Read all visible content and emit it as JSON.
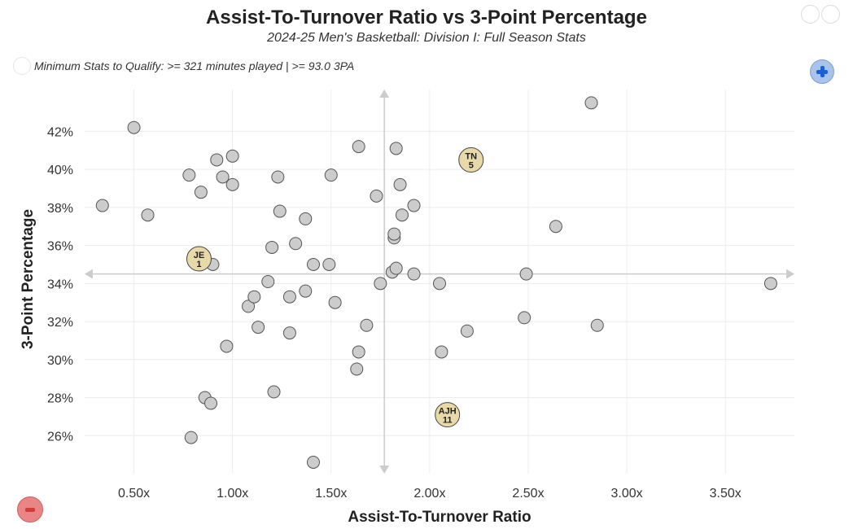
{
  "chart_data": {
    "type": "scatter",
    "title": "Assist-To-Turnover Ratio vs 3-Point Percentage",
    "subtitle": "2024-25 Men's Basketball: Division I: Full Season Stats",
    "note": "Minimum Stats to Qualify: >= 321 minutes played | >= 93.0 3PA",
    "xlabel": "Assist-To-Turnover Ratio",
    "ylabel": "3-Point Percentage",
    "xlim": [
      0.25,
      3.85
    ],
    "ylim": [
      24.0,
      44.2
    ],
    "x_ticks": [
      0.5,
      1.0,
      1.5,
      2.0,
      2.5,
      3.0,
      3.5
    ],
    "x_tick_labels": [
      "0.50x",
      "1.00x",
      "1.50x",
      "2.00x",
      "2.50x",
      "3.00x",
      "3.50x"
    ],
    "y_ticks": [
      26,
      28,
      30,
      32,
      34,
      36,
      38,
      40,
      42
    ],
    "y_tick_labels": [
      "26%",
      "28%",
      "30%",
      "32%",
      "34%",
      "36%",
      "38%",
      "40%",
      "42%"
    ],
    "grid": true,
    "avg_x": 1.77,
    "avg_y": 34.5,
    "colors": {
      "point": "#cccccc",
      "point_stroke": "#555555",
      "highlight": "#e8d9a8",
      "grid": "#ececec",
      "avg_line": "#cccccc"
    },
    "points": [
      {
        "x": 0.34,
        "y": 38.1
      },
      {
        "x": 0.5,
        "y": 42.2
      },
      {
        "x": 0.57,
        "y": 37.6
      },
      {
        "x": 0.78,
        "y": 39.7
      },
      {
        "x": 0.79,
        "y": 25.9
      },
      {
        "x": 0.84,
        "y": 38.8
      },
      {
        "x": 0.86,
        "y": 28.0
      },
      {
        "x": 0.89,
        "y": 27.7
      },
      {
        "x": 0.9,
        "y": 35.0
      },
      {
        "x": 0.92,
        "y": 40.5
      },
      {
        "x": 0.95,
        "y": 39.6
      },
      {
        "x": 0.97,
        "y": 30.7
      },
      {
        "x": 1.0,
        "y": 40.7
      },
      {
        "x": 1.0,
        "y": 39.2
      },
      {
        "x": 1.08,
        "y": 32.8
      },
      {
        "x": 1.11,
        "y": 33.3
      },
      {
        "x": 1.13,
        "y": 31.7
      },
      {
        "x": 1.18,
        "y": 34.1
      },
      {
        "x": 1.2,
        "y": 35.9
      },
      {
        "x": 1.21,
        "y": 28.3
      },
      {
        "x": 1.23,
        "y": 39.6
      },
      {
        "x": 1.24,
        "y": 37.8
      },
      {
        "x": 1.29,
        "y": 33.3
      },
      {
        "x": 1.29,
        "y": 31.4
      },
      {
        "x": 1.32,
        "y": 36.1
      },
      {
        "x": 1.37,
        "y": 37.4
      },
      {
        "x": 1.37,
        "y": 33.6
      },
      {
        "x": 1.41,
        "y": 35.0
      },
      {
        "x": 1.41,
        "y": 24.6
      },
      {
        "x": 1.49,
        "y": 35.0
      },
      {
        "x": 1.5,
        "y": 39.7
      },
      {
        "x": 1.52,
        "y": 33.0
      },
      {
        "x": 1.63,
        "y": 29.5
      },
      {
        "x": 1.64,
        "y": 41.2
      },
      {
        "x": 1.64,
        "y": 30.4
      },
      {
        "x": 1.68,
        "y": 31.8
      },
      {
        "x": 1.73,
        "y": 38.6
      },
      {
        "x": 1.75,
        "y": 34.0
      },
      {
        "x": 1.81,
        "y": 34.6
      },
      {
        "x": 1.82,
        "y": 36.4
      },
      {
        "x": 1.82,
        "y": 36.6
      },
      {
        "x": 1.83,
        "y": 41.1
      },
      {
        "x": 1.83,
        "y": 34.8
      },
      {
        "x": 1.85,
        "y": 39.2
      },
      {
        "x": 1.86,
        "y": 37.6
      },
      {
        "x": 1.92,
        "y": 38.1
      },
      {
        "x": 1.92,
        "y": 34.5
      },
      {
        "x": 2.05,
        "y": 34.0
      },
      {
        "x": 2.06,
        "y": 30.4
      },
      {
        "x": 2.19,
        "y": 31.5
      },
      {
        "x": 2.48,
        "y": 32.2
      },
      {
        "x": 2.49,
        "y": 34.5
      },
      {
        "x": 2.64,
        "y": 37.0
      },
      {
        "x": 2.82,
        "y": 43.5
      },
      {
        "x": 2.85,
        "y": 31.8
      },
      {
        "x": 3.73,
        "y": 34.0
      }
    ],
    "highlights": [
      {
        "label": "TN",
        "number": "5",
        "x": 2.21,
        "y": 40.5
      },
      {
        "label": "JE",
        "number": "1",
        "x": 0.83,
        "y": 35.3
      },
      {
        "label": "AJH",
        "number": "11",
        "x": 2.09,
        "y": 27.1
      }
    ]
  }
}
